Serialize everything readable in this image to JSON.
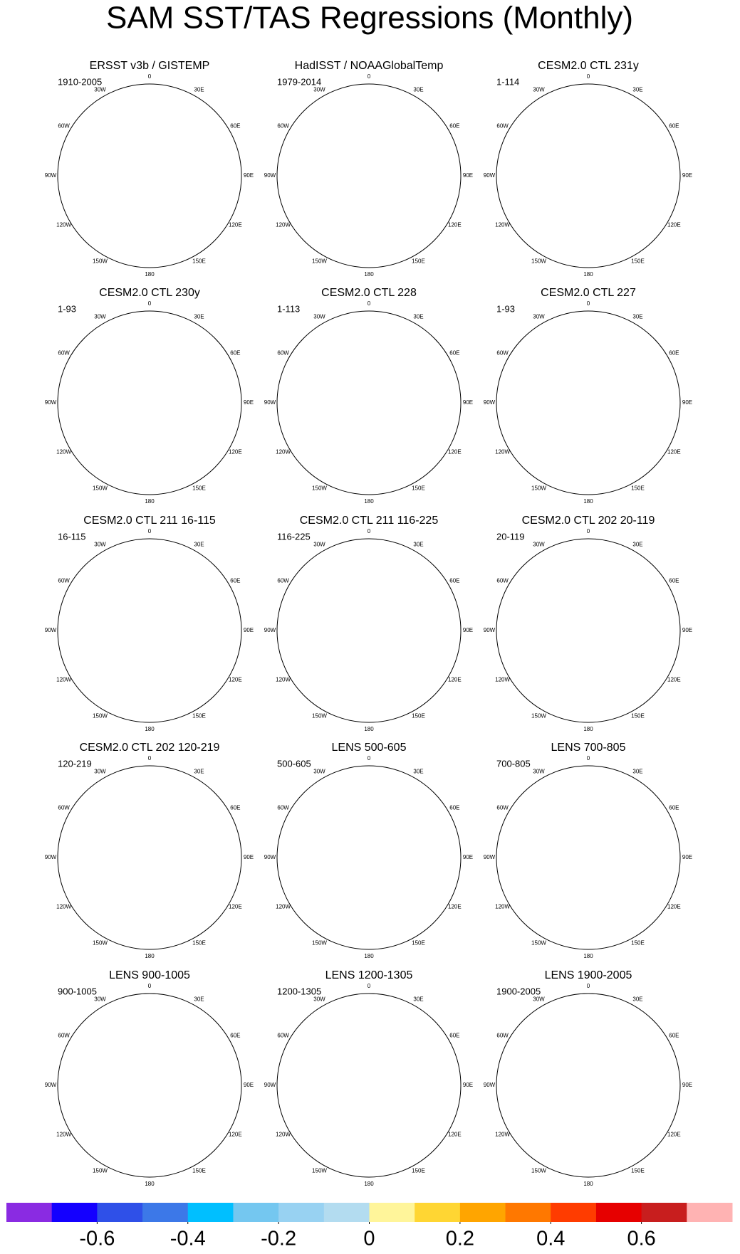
{
  "title": "SAM SST/TAS Regressions (Monthly)",
  "longitude_labels": [
    "0",
    "30E",
    "60E",
    "90E",
    "120E",
    "150E",
    "180",
    "150W",
    "120W",
    "90W",
    "60W",
    "30W"
  ],
  "panels": [
    {
      "title": "ERSST v3b / GISTEMP",
      "period": "1910-2005"
    },
    {
      "title": "HadISST / NOAAGlobalTemp",
      "period": "1979-2014"
    },
    {
      "title": "CESM2.0 CTL 231y",
      "period": "1-114"
    },
    {
      "title": "CESM2.0 CTL 230y",
      "period": "1-93"
    },
    {
      "title": "CESM2.0 CTL 228",
      "period": "1-113"
    },
    {
      "title": "CESM2.0 CTL 227",
      "period": "1-93"
    },
    {
      "title": "CESM2.0 CTL 211 16-115",
      "period": "16-115"
    },
    {
      "title": "CESM2.0 CTL 211 116-225",
      "period": "116-225"
    },
    {
      "title": "CESM2.0 CTL 202 20-119",
      "period": "20-119"
    },
    {
      "title": "CESM2.0 CTL 202 120-219",
      "period": "120-219"
    },
    {
      "title": "LENS 500-605",
      "period": "500-605"
    },
    {
      "title": "LENS 700-805",
      "period": "700-805"
    },
    {
      "title": "LENS 900-1005",
      "period": "900-1005"
    },
    {
      "title": "LENS 1200-1305",
      "period": "1200-1305"
    },
    {
      "title": "LENS 1900-2005",
      "period": "1900-2005"
    }
  ],
  "colorbar": {
    "range": [
      -0.8,
      0.8
    ],
    "colors": [
      "#8a2be2",
      "#1400ff",
      "#2f50e8",
      "#3c78e8",
      "#00bfff",
      "#74c7f0",
      "#98d2f2",
      "#b3dcf0",
      "#fff59a",
      "#ffd633",
      "#ffa500",
      "#ff7800",
      "#ff3c00",
      "#e60000",
      "#c81e1e",
      "#ffb3b3"
    ],
    "ticks": [
      -0.6,
      -0.4,
      -0.2,
      0,
      0.2,
      0.4,
      0.6
    ]
  }
}
